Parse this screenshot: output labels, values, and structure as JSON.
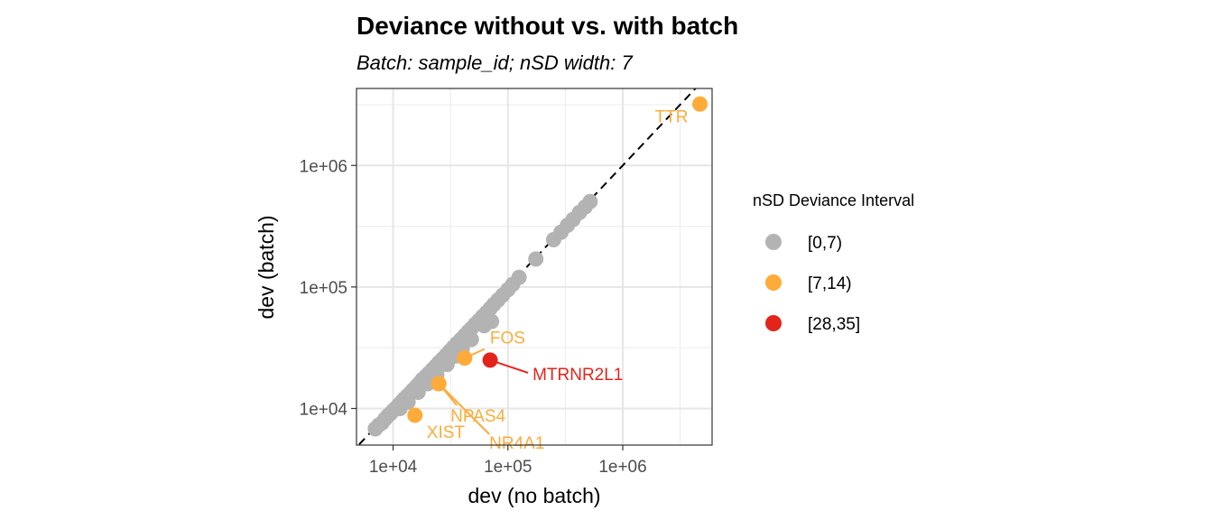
{
  "chart_data": {
    "type": "scatter",
    "title": "Deviance without vs. with batch",
    "subtitle": "Batch: sample_id; nSD width: 7",
    "xlabel": "dev (no batch)",
    "ylabel": "dev (batch)",
    "x_scale": "log10",
    "y_scale": "log10",
    "xlim": [
      4800,
      6000000
    ],
    "ylim": [
      5000,
      4300000
    ],
    "x_ticks": [
      10000,
      100000,
      1000000
    ],
    "x_tick_labels": [
      "1e+04",
      "1e+05",
      "1e+06"
    ],
    "y_ticks": [
      10000,
      100000,
      1000000
    ],
    "y_tick_labels": [
      "1e+04",
      "1e+05",
      "1e+06"
    ],
    "grid": true,
    "reference_line": "y = x (dashed)",
    "legend": {
      "title": "nSD Deviance Interval",
      "placement": "right",
      "entries": [
        {
          "label": "[0,7)",
          "color": "#b3b3b3"
        },
        {
          "label": "[7,14)",
          "color": "#feab3a"
        },
        {
          "label": "[28,35]",
          "color": "#e3241b"
        }
      ]
    },
    "series": [
      {
        "interval": "[0,7)",
        "color": "#b3b3b3",
        "points": [
          [
            7000,
            6800
          ],
          [
            7500,
            7300
          ],
          [
            8000,
            7600
          ],
          [
            8500,
            8200
          ],
          [
            9000,
            8700
          ],
          [
            9500,
            9100
          ],
          [
            10000,
            9600
          ],
          [
            10600,
            10100
          ],
          [
            11200,
            10700
          ],
          [
            11800,
            11300
          ],
          [
            12500,
            12000
          ],
          [
            13300,
            12700
          ],
          [
            14100,
            13400
          ],
          [
            15000,
            14300
          ],
          [
            16000,
            15200
          ],
          [
            17000,
            16200
          ],
          [
            18000,
            17300
          ],
          [
            19200,
            18300
          ],
          [
            20500,
            19500
          ],
          [
            22000,
            20900
          ],
          [
            23500,
            22300
          ],
          [
            25000,
            23800
          ],
          [
            27000,
            25600
          ],
          [
            29000,
            27500
          ],
          [
            31000,
            29500
          ],
          [
            33500,
            31900
          ],
          [
            36000,
            34300
          ],
          [
            39000,
            37000
          ],
          [
            42000,
            39900
          ],
          [
            45000,
            42800
          ],
          [
            48000,
            45500
          ],
          [
            52000,
            49400
          ],
          [
            56000,
            53000
          ],
          [
            60000,
            57000
          ],
          [
            65000,
            61500
          ],
          [
            70000,
            66500
          ],
          [
            75000,
            71500
          ],
          [
            82000,
            78000
          ],
          [
            90000,
            85500
          ],
          [
            100000,
            95000
          ],
          [
            110000,
            105000
          ],
          [
            125000,
            120000
          ],
          [
            175000,
            170000
          ],
          [
            250000,
            245000
          ],
          [
            290000,
            282000
          ],
          [
            330000,
            322000
          ],
          [
            370000,
            360000
          ],
          [
            420000,
            410000
          ],
          [
            470000,
            455000
          ],
          [
            520000,
            505000
          ],
          [
            11500,
            10000
          ],
          [
            13500,
            11300
          ],
          [
            16500,
            13600
          ],
          [
            20000,
            16000
          ],
          [
            24000,
            19000
          ],
          [
            29500,
            23000
          ],
          [
            35000,
            27000
          ],
          [
            40000,
            31000
          ],
          [
            48000,
            37000
          ],
          [
            62000,
            48000
          ],
          [
            72000,
            52000
          ]
        ]
      },
      {
        "interval": "[7,14)",
        "color": "#feab3a",
        "points": [
          {
            "gene": "TTR",
            "x": 4700000,
            "y": 3200000
          },
          {
            "gene": "FOS",
            "x": 42000,
            "y": 26000
          },
          {
            "gene": "NPAS4",
            "x": 25000,
            "y": 16000
          },
          {
            "gene": "NR4A1",
            "x": 25000,
            "y": 16000
          },
          {
            "gene": "XIST",
            "x": 15500,
            "y": 8800
          }
        ]
      },
      {
        "interval": "[28,35]",
        "color": "#e3241b",
        "points": [
          {
            "gene": "MTRNR2L1",
            "x": 70000,
            "y": 25000
          }
        ]
      }
    ],
    "annotations": [
      "TTR",
      "FOS",
      "MTRNR2L1",
      "NPAS4",
      "NR4A1",
      "XIST"
    ]
  }
}
